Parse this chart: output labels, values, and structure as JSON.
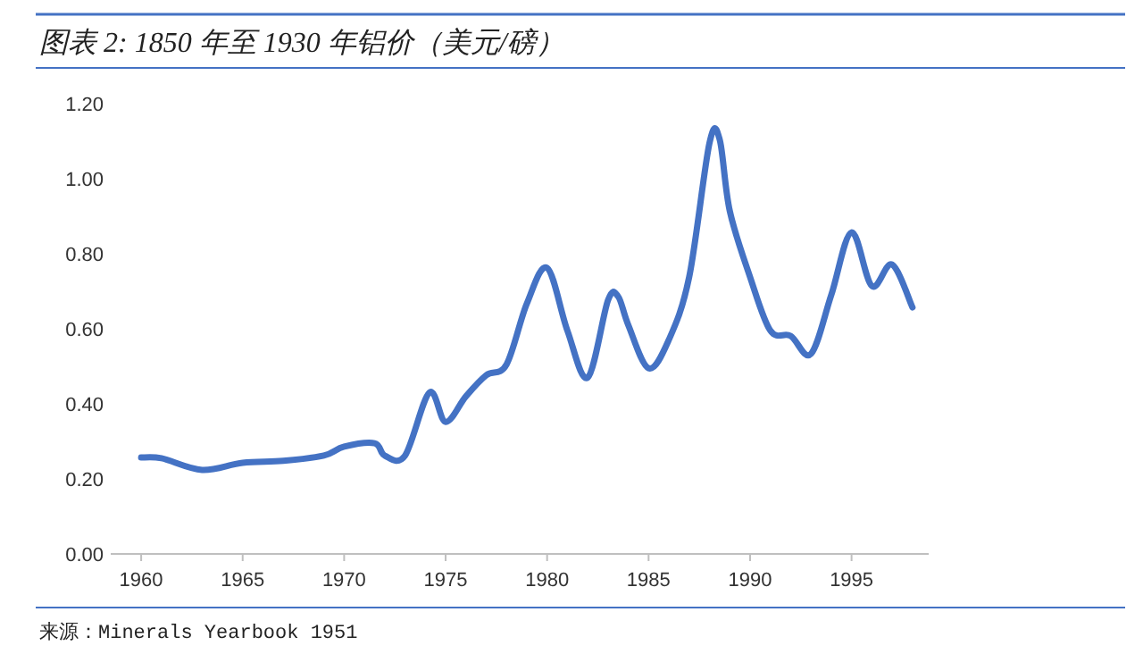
{
  "chart_data": {
    "type": "line",
    "title": "图表 2:  1850 年至 1930 年铝价（美元/磅）",
    "annotations": [
      "来源：Minerals Yearbook 1951"
    ],
    "x": [
      1960,
      1961,
      1963,
      1965,
      1967,
      1969,
      1970,
      1971.5,
      1972,
      1973,
      1974.2,
      1975,
      1976,
      1977,
      1978,
      1979,
      1980,
      1981,
      1982,
      1983,
      1983.5,
      1984,
      1985,
      1986,
      1987,
      1988,
      1988.5,
      1989,
      1990,
      1991,
      1992,
      1993,
      1994,
      1995,
      1996,
      1997,
      1998
    ],
    "series": [
      {
        "color": "#4472c4",
        "values": [
          0.257,
          0.255,
          0.224,
          0.243,
          0.248,
          0.262,
          0.286,
          0.295,
          0.262,
          0.262,
          0.43,
          0.352,
          0.42,
          0.476,
          0.505,
          0.667,
          0.762,
          0.595,
          0.47,
          0.676,
          0.686,
          0.61,
          0.495,
          0.571,
          0.738,
          1.095,
          1.105,
          0.914,
          0.738,
          0.595,
          0.581,
          0.533,
          0.69,
          0.857,
          0.714,
          0.771,
          0.657
        ]
      }
    ],
    "xlim": [
      1958.5,
      1998.8
    ],
    "ylim": [
      0,
      1.2
    ],
    "xticks": [
      1960,
      1965,
      1970,
      1975,
      1980,
      1985,
      1990,
      1995
    ],
    "yticks": [
      {
        "value": 0,
        "label": "0.00"
      },
      {
        "value": 0.2,
        "label": "0.20"
      },
      {
        "value": 0.4,
        "label": "0.40"
      },
      {
        "value": 0.6,
        "label": "0.60"
      },
      {
        "value": 0.8,
        "label": "0.80"
      },
      {
        "value": 1.0,
        "label": "1.00"
      },
      {
        "value": 1.2,
        "label": "1.20"
      }
    ],
    "marker": "none",
    "line_style": "solid"
  }
}
